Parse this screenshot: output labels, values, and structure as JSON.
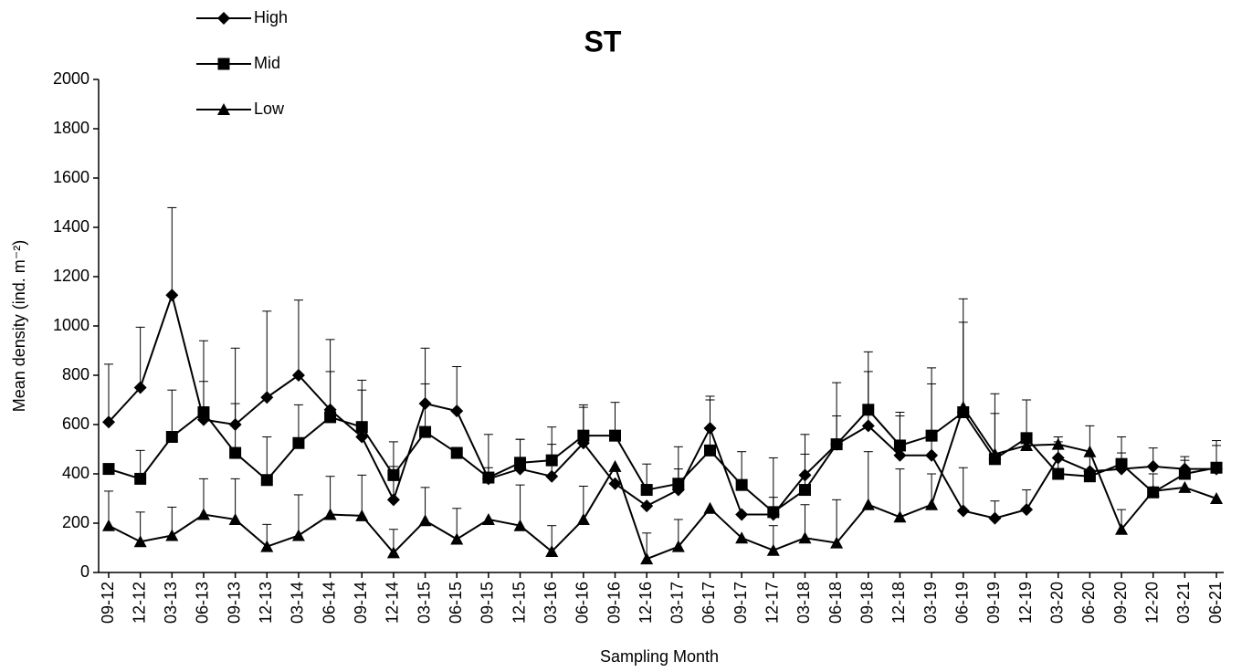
{
  "chart_data": {
    "type": "line",
    "title": "ST",
    "x_label": "Sampling Month",
    "y_label": "Mean density (ind. m⁻²)",
    "categories": [
      "09-12",
      "12-12",
      "03-13",
      "06-13",
      "09-13",
      "12-13",
      "03-14",
      "06-14",
      "09-14",
      "12-14",
      "03-15",
      "06-15",
      "09-15",
      "12-15",
      "03-16",
      "06-16",
      "09-16",
      "12-16",
      "03-17",
      "06-17",
      "09-17",
      "12-17",
      "03-18",
      "06-18",
      "09-18",
      "12-18",
      "03-19",
      "06-19",
      "09-19",
      "12-19",
      "03-20",
      "06-20",
      "09-20",
      "12-20",
      "03-21",
      "06-21"
    ],
    "series": [
      {
        "name": "High",
        "color": "#000000",
        "marker": "diamond",
        "values": [
          610,
          750,
          1125,
          620,
          600,
          710,
          800,
          660,
          550,
          295,
          685,
          655,
          380,
          420,
          390,
          525,
          360,
          270,
          335,
          585,
          235,
          235,
          395,
          520,
          595,
          475,
          475,
          250,
          220,
          255,
          465,
          410,
          420,
          430,
          420,
          420
        ],
        "errors": [
          235,
          245,
          355,
          320,
          310,
          350,
          305,
          285,
          190,
          235,
          225,
          180,
          180,
          120,
          130,
          145,
          null,
          null,
          85,
          130,
          null,
          70,
          85,
          115,
          220,
          160,
          290,
          175,
          70,
          80,
          65,
          null,
          65,
          75,
          35,
          95
        ]
      },
      {
        "name": "Mid",
        "color": "#000000",
        "marker": "square",
        "values": [
          420,
          380,
          550,
          650,
          485,
          375,
          525,
          630,
          590,
          395,
          570,
          485,
          385,
          445,
          455,
          555,
          555,
          335,
          360,
          495,
          355,
          245,
          335,
          520,
          660,
          515,
          555,
          650,
          460,
          545,
          400,
          390,
          440,
          325,
          400,
          425
        ],
        "errors": [
          null,
          115,
          190,
          125,
          200,
          175,
          155,
          185,
          190,
          35,
          195,
          null,
          40,
          95,
          135,
          125,
          135,
          105,
          150,
          205,
          135,
          220,
          225,
          250,
          235,
          135,
          275,
          460,
          265,
          155,
          150,
          205,
          110,
          75,
          70,
          110
        ]
      },
      {
        "name": "Low",
        "color": "#000000",
        "marker": "triangle",
        "values": [
          190,
          125,
          150,
          235,
          215,
          105,
          150,
          235,
          230,
          80,
          210,
          135,
          215,
          190,
          85,
          215,
          430,
          55,
          105,
          260,
          140,
          90,
          140,
          120,
          275,
          225,
          275,
          670,
          480,
          515,
          520,
          490,
          175,
          330,
          345,
          300
        ],
        "errors": [
          140,
          120,
          115,
          145,
          165,
          90,
          165,
          155,
          165,
          95,
          135,
          125,
          null,
          165,
          105,
          135,
          null,
          105,
          110,
          null,
          null,
          100,
          135,
          175,
          215,
          195,
          125,
          345,
          165,
          null,
          30,
          null,
          80,
          null,
          null,
          null
        ]
      }
    ],
    "ylim": [
      0,
      2000
    ],
    "yticks": [
      0,
      200,
      400,
      600,
      800,
      1000,
      1200,
      1400,
      1600,
      1800,
      2000
    ],
    "grid": false,
    "legend": "top-left"
  }
}
